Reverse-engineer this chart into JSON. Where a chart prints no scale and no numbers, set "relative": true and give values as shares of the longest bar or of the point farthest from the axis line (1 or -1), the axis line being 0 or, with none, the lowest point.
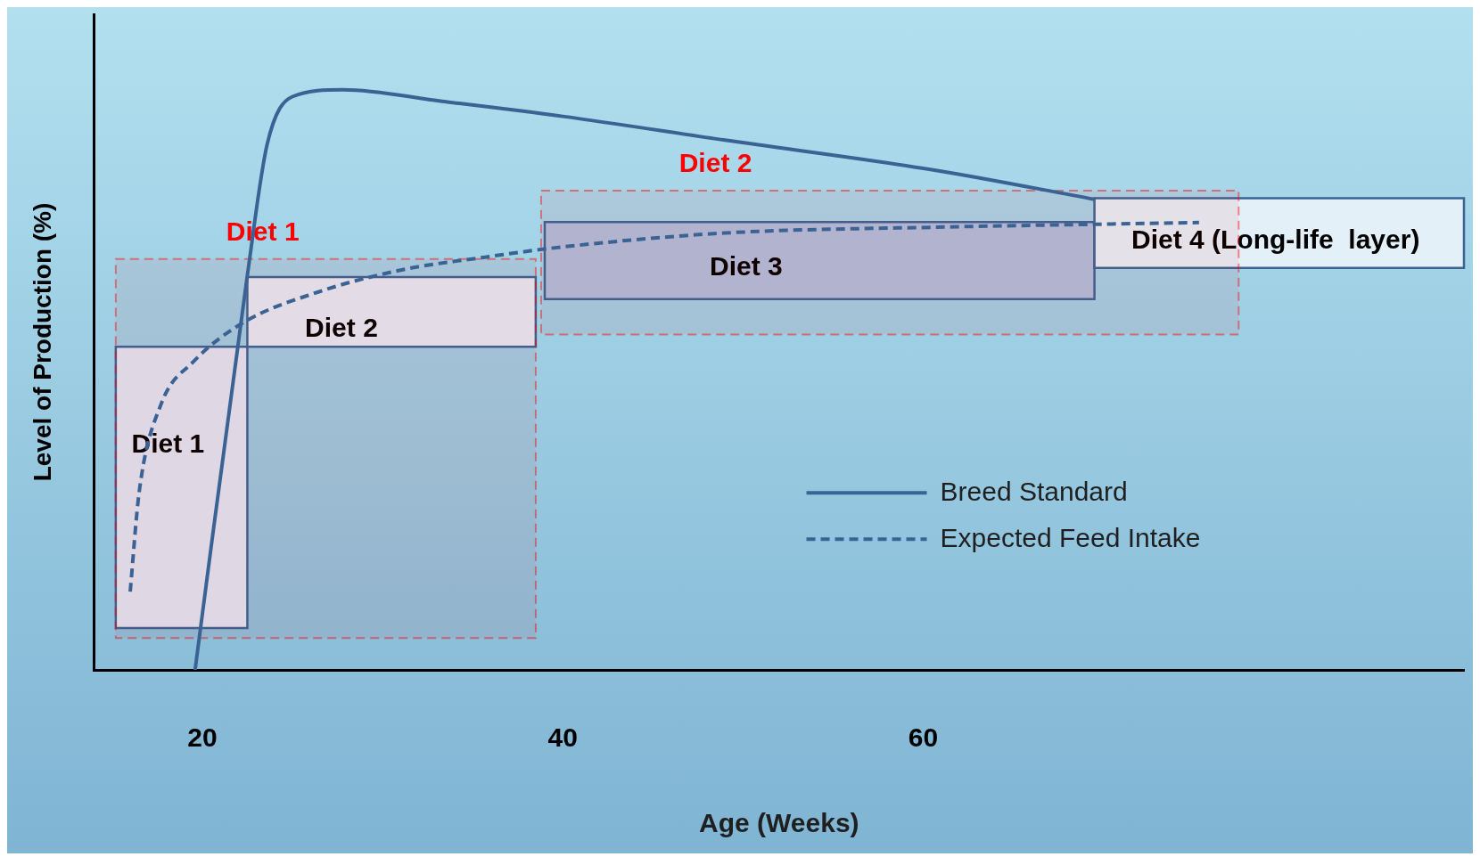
{
  "chart_data": {
    "type": "line",
    "relative": true,
    "xlabel": "Age (Weeks)",
    "ylabel": "Level of Production (%)",
    "xlim": [
      14,
      90
    ],
    "xticks": [
      20,
      40,
      60
    ],
    "grid": false,
    "legend": "right",
    "marker": "none",
    "series": [
      {
        "name": "Breed Standard",
        "color": "#3a6394",
        "line_style": "solid",
        "x": [
          19.6,
          22.5,
          23.6,
          25,
          27.8,
          33.3,
          40,
          49,
          60.7,
          69.5
        ],
        "values": [
          0,
          0.68,
          0.906,
          0.988,
          1,
          0.98,
          0.954,
          0.913,
          0.861,
          0.811
        ]
      },
      {
        "name": "Expected Feed Intake",
        "color": "#3a6394",
        "line_style": "dashed",
        "x": [
          16,
          16.5,
          17.7,
          19.5,
          22.3,
          26.4,
          31,
          35.6,
          40,
          49,
          60.7,
          75.3
        ],
        "values": [
          0.135,
          0.307,
          0.457,
          0.531,
          0.599,
          0.651,
          0.689,
          0.711,
          0.729,
          0.753,
          0.763,
          0.771
        ]
      }
    ],
    "bands": [
      {
        "axis": "x",
        "from": 15.2,
        "to": 22.5,
        "label": "Diet 1",
        "color": "#dde5f3"
      },
      {
        "axis": "x",
        "from": 22.5,
        "to": 38.5,
        "label": "Diet 2",
        "color": "#e2eaf5"
      },
      {
        "axis": "x",
        "from": 39,
        "to": 69.5,
        "label": "Diet 3",
        "color": "#aec0dc"
      },
      {
        "axis": "x",
        "from": 69.5,
        "to": 90,
        "label": "Diet 4 (Long-life  layer)",
        "color": "#e4f0f8"
      },
      {
        "axis": "x",
        "from": 15.2,
        "to": 38.5,
        "label": "Diet 1",
        "color": "#ff0000"
      },
      {
        "axis": "x",
        "from": 38.8,
        "to": 77.5,
        "label": "Diet 2",
        "color": "#ff0000"
      }
    ]
  }
}
